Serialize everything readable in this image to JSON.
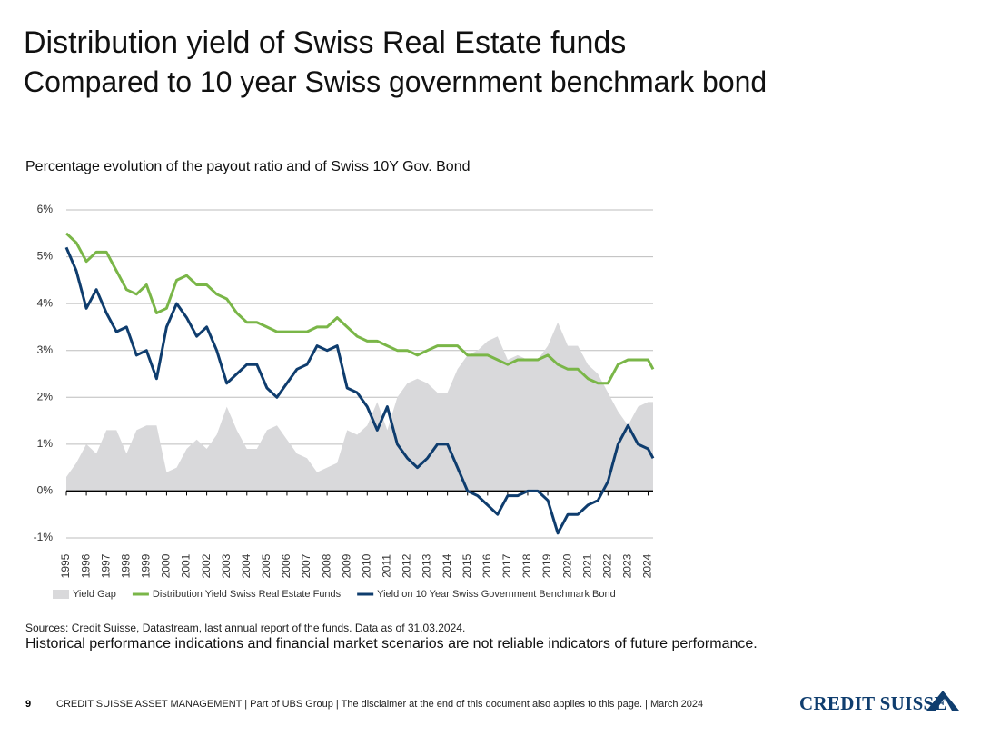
{
  "header": {
    "title": "Distribution yield of Swiss Real Estate funds",
    "subtitle": "Compared to 10 year Swiss government benchmark bond"
  },
  "chart_data": {
    "type": "line",
    "title": "Percentage evolution of the payout ratio and of Swiss 10Y Gov. Bond",
    "x": [
      1995,
      1995.5,
      1996,
      1996.5,
      1997,
      1997.5,
      1998,
      1998.5,
      1999,
      1999.5,
      2000,
      2000.5,
      2001,
      2001.5,
      2002,
      2002.5,
      2003,
      2003.5,
      2004,
      2004.5,
      2005,
      2005.5,
      2006,
      2006.5,
      2007,
      2007.5,
      2008,
      2008.5,
      2009,
      2009.5,
      2010,
      2010.5,
      2011,
      2011.5,
      2012,
      2012.5,
      2013,
      2013.5,
      2014,
      2014.5,
      2015,
      2015.5,
      2016,
      2016.5,
      2017,
      2017.5,
      2018,
      2018.5,
      2019,
      2019.5,
      2020,
      2020.5,
      2021,
      2021.5,
      2022,
      2022.5,
      2023,
      2023.5,
      2024,
      2024.25
    ],
    "series": [
      {
        "name": "Yield Gap",
        "kind": "area",
        "color": "#d9d9db",
        "values": [
          0.3,
          0.6,
          1.0,
          0.8,
          1.3,
          1.3,
          0.8,
          1.3,
          1.4,
          1.4,
          0.4,
          0.5,
          0.9,
          1.1,
          0.9,
          1.2,
          1.8,
          1.3,
          0.9,
          0.9,
          1.3,
          1.4,
          1.1,
          0.8,
          0.7,
          0.4,
          0.5,
          0.6,
          1.3,
          1.2,
          1.4,
          1.9,
          1.3,
          2.0,
          2.3,
          2.4,
          2.3,
          2.1,
          2.1,
          2.6,
          2.9,
          3.0,
          3.2,
          3.3,
          2.8,
          2.9,
          2.8,
          2.8,
          3.1,
          3.6,
          3.1,
          3.1,
          2.7,
          2.5,
          2.1,
          1.7,
          1.4,
          1.8,
          1.9,
          1.9
        ]
      },
      {
        "name": "Distribution Yield Swiss Real Estate Funds",
        "kind": "line",
        "color": "#7ab648",
        "values": [
          5.5,
          5.3,
          4.9,
          5.1,
          5.1,
          4.7,
          4.3,
          4.2,
          4.4,
          3.8,
          3.9,
          4.5,
          4.6,
          4.4,
          4.4,
          4.2,
          4.1,
          3.8,
          3.6,
          3.6,
          3.5,
          3.4,
          3.4,
          3.4,
          3.4,
          3.5,
          3.5,
          3.7,
          3.5,
          3.3,
          3.2,
          3.2,
          3.1,
          3.0,
          3.0,
          2.9,
          3.0,
          3.1,
          3.1,
          3.1,
          2.9,
          2.9,
          2.9,
          2.8,
          2.7,
          2.8,
          2.8,
          2.8,
          2.9,
          2.7,
          2.6,
          2.6,
          2.4,
          2.3,
          2.3,
          2.7,
          2.8,
          2.8,
          2.8,
          2.6
        ]
      },
      {
        "name": "Yield on 10 Year Swiss Government Benchmark Bond",
        "kind": "line",
        "color": "#0f3d6e",
        "values": [
          5.2,
          4.7,
          3.9,
          4.3,
          3.8,
          3.4,
          3.5,
          2.9,
          3.0,
          2.4,
          3.5,
          4.0,
          3.7,
          3.3,
          3.5,
          3.0,
          2.3,
          2.5,
          2.7,
          2.7,
          2.2,
          2.0,
          2.3,
          2.6,
          2.7,
          3.1,
          3.0,
          3.1,
          2.2,
          2.1,
          1.8,
          1.3,
          1.8,
          1.0,
          0.7,
          0.5,
          0.7,
          1.0,
          1.0,
          0.5,
          0.0,
          -0.1,
          -0.3,
          -0.5,
          -0.1,
          -0.1,
          0.0,
          0.0,
          -0.2,
          -0.9,
          -0.5,
          -0.5,
          -0.3,
          -0.2,
          0.2,
          1.0,
          1.4,
          1.0,
          0.9,
          0.7
        ]
      }
    ],
    "xlim": [
      1995,
      2024.25
    ],
    "xticks": [
      1995,
      1996,
      1997,
      1998,
      1999,
      2000,
      2001,
      2002,
      2003,
      2004,
      2005,
      2006,
      2007,
      2008,
      2009,
      2010,
      2011,
      2012,
      2013,
      2014,
      2015,
      2016,
      2017,
      2018,
      2019,
      2020,
      2021,
      2022,
      2023,
      2024
    ],
    "ylim": [
      -1,
      6
    ],
    "yticks": [
      {
        "value": -1,
        "label": "-1%"
      },
      {
        "value": 0,
        "label": "0%"
      },
      {
        "value": 1,
        "label": "1%"
      },
      {
        "value": 2,
        "label": "2%"
      },
      {
        "value": 3,
        "label": "3%"
      },
      {
        "value": 4,
        "label": "4%"
      },
      {
        "value": 5,
        "label": "5%"
      },
      {
        "value": 6,
        "label": "6%"
      }
    ],
    "grid": true
  },
  "notes": {
    "sources": "Sources: Credit Suisse, Datastream, last annual report of the funds. Data as of 31.03.2024.",
    "disclaimer": "Historical performance indications and financial market scenarios are not reliable indicators of future performance."
  },
  "footer": {
    "page": "9",
    "text": "CREDIT SUISSE ASSET MANAGEMENT | Part of UBS Group | The disclaimer at the end of this document also applies to this page. | March 2024",
    "logo": "CREDIT SUISSE"
  }
}
